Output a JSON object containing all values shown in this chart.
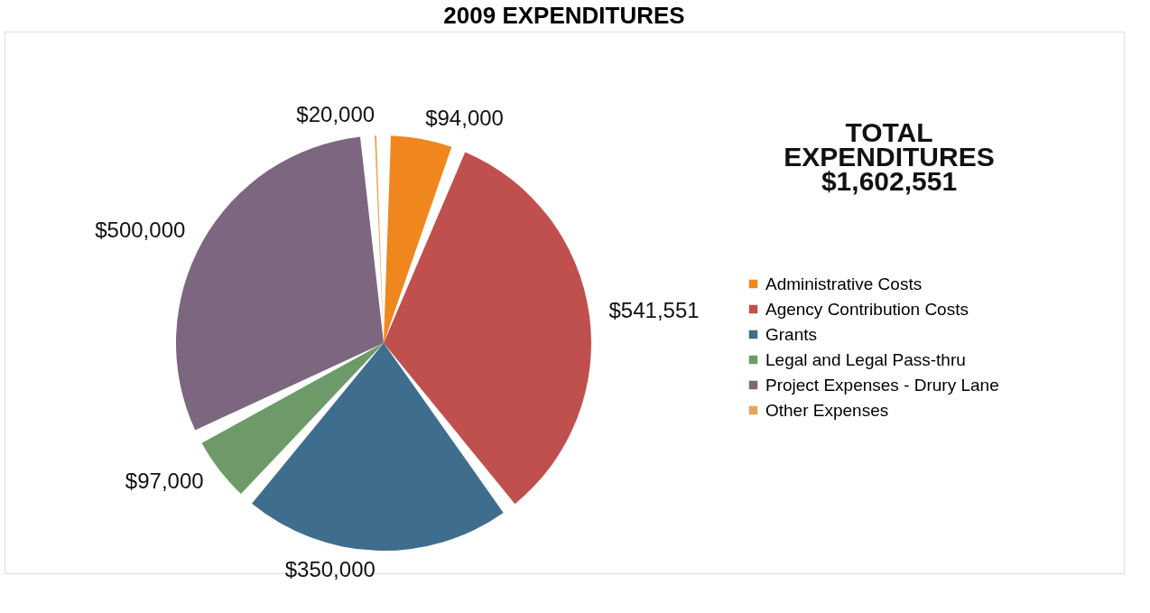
{
  "chart_data": {
    "type": "pie",
    "title": "2009 EXPENDITURES",
    "categories": [
      "Administrative Costs",
      "Agency Contribution Costs",
      "Grants",
      "Legal and Legal Pass-thru",
      "Project Expenses - Drury Lane",
      "Other Expenses"
    ],
    "values": [
      94000,
      541551,
      350000,
      97000,
      500000,
      20000
    ],
    "value_labels": [
      "$94,000",
      "$541,551",
      "$350,000",
      "$97,000",
      "$500,000",
      "$20,000"
    ],
    "colors": [
      "#f0861e",
      "#c0504d",
      "#3f6d8e",
      "#6e9a6a",
      "#7d6680",
      "#e8a55e"
    ],
    "annotations": [
      "TOTAL",
      "EXPENDITURES",
      "$1,602,551"
    ],
    "legend": "right"
  }
}
